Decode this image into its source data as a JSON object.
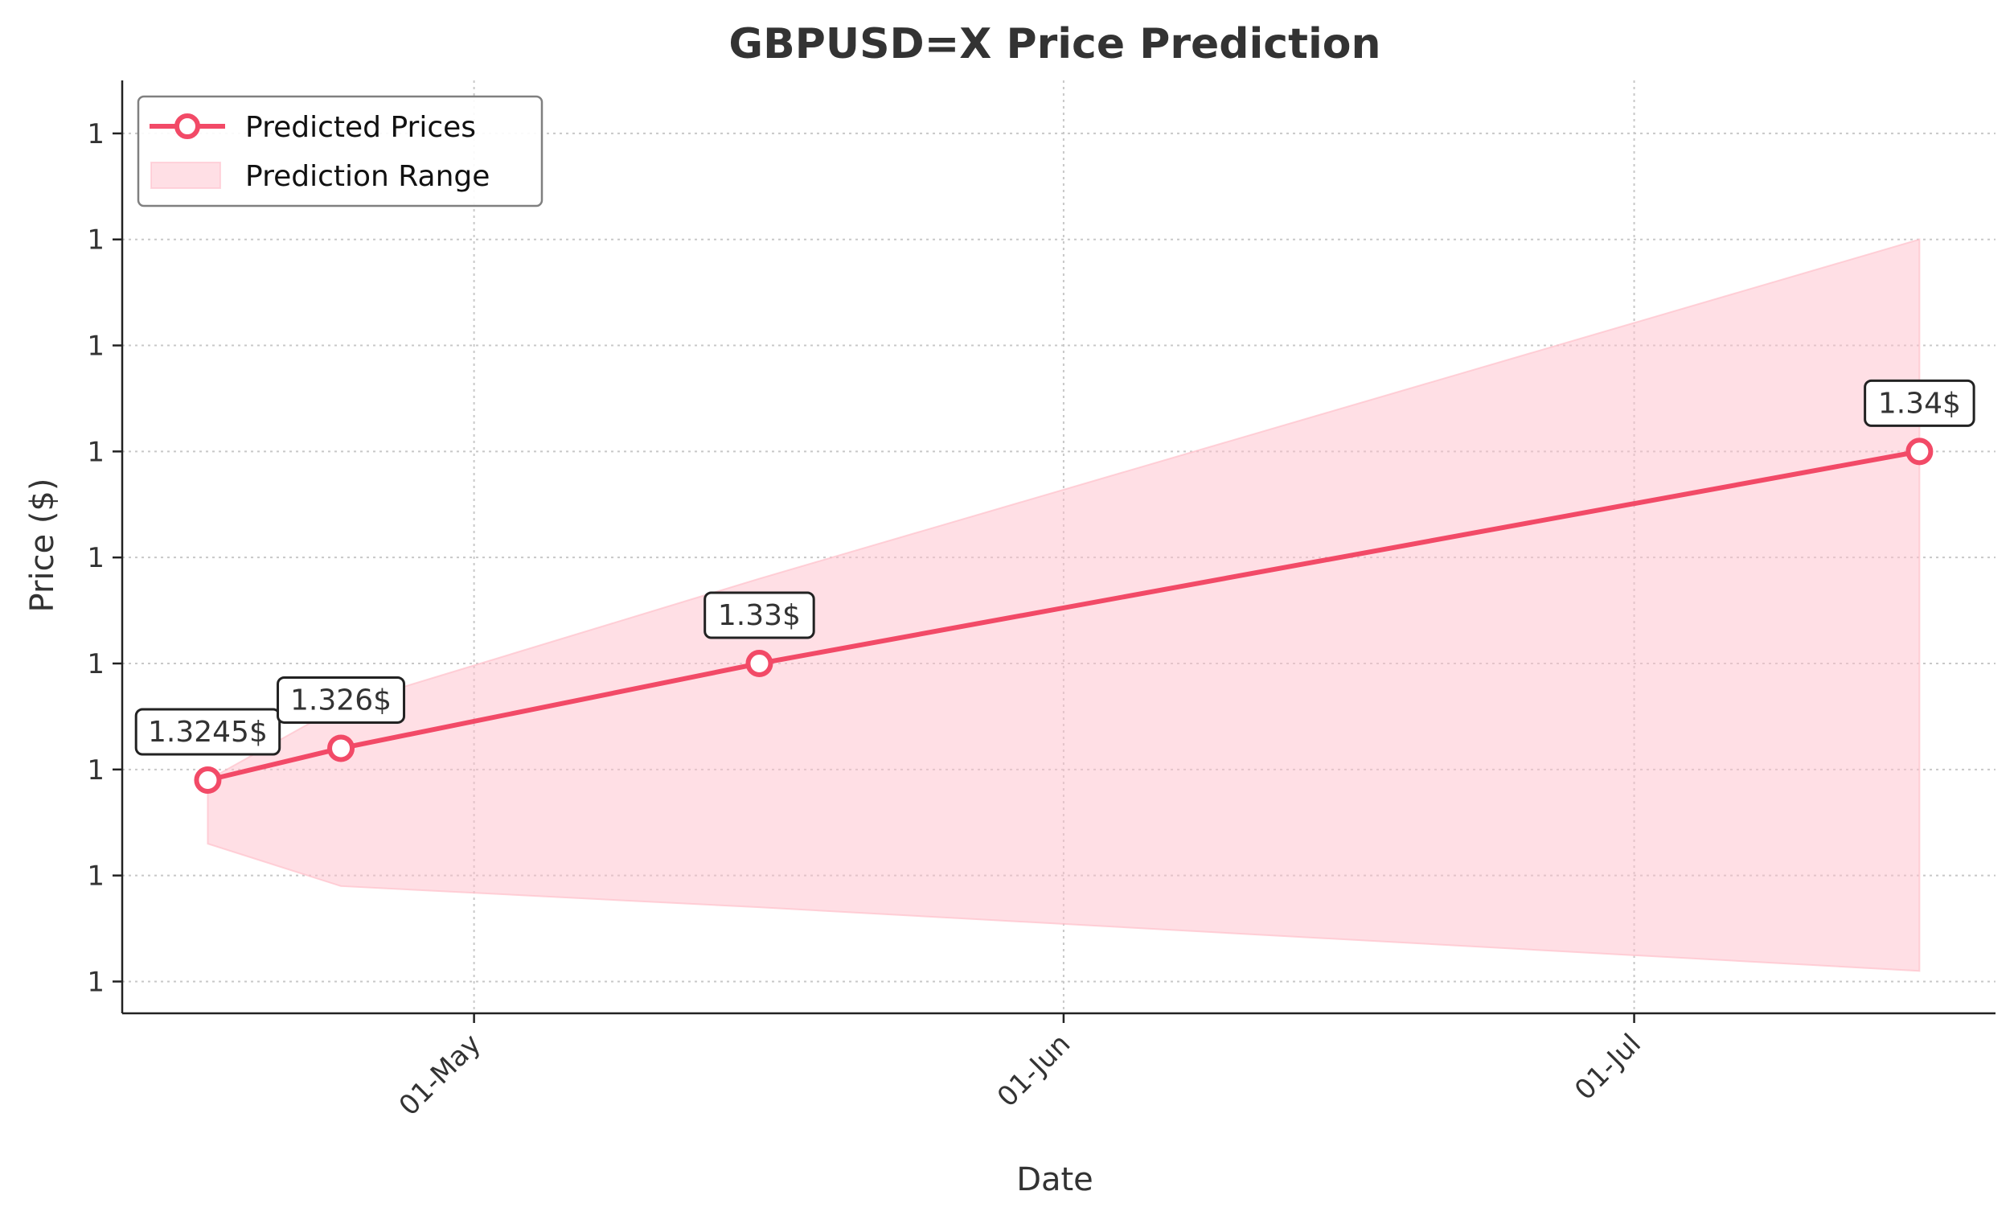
{
  "chart_data": {
    "type": "line",
    "title": "GBPUSD=X Price Prediction",
    "xlabel": "Date",
    "ylabel": "Price ($)",
    "x_tick_labels": [
      "01-May",
      "01-Jun",
      "01-Jul"
    ],
    "y_tick_labels": [
      "1",
      "1",
      "1",
      "1",
      "1",
      "1",
      "1",
      "1",
      "1"
    ],
    "grid": true,
    "legend_position": "top-left",
    "series": [
      {
        "name": "Predicted Prices",
        "type": "line",
        "color": "#f24a67",
        "x_days": [
          -14,
          -7,
          15,
          76
        ],
        "values": [
          1.3245,
          1.326,
          1.33,
          1.34
        ],
        "labels": [
          "1.3245$",
          "1.326$",
          "1.33$",
          "1.34$"
        ]
      },
      {
        "name": "Prediction Range",
        "type": "area",
        "color": "#ffc0cb",
        "x_days": [
          -14,
          -7,
          15,
          76
        ],
        "upper": [
          1.3245,
          1.328,
          1.334,
          1.35
        ],
        "lower": [
          1.3215,
          1.3195,
          1.3185,
          1.3155
        ]
      }
    ],
    "x_range_days": [
      -18.5,
      80
    ],
    "x_tick_days": [
      0,
      31,
      61
    ],
    "ylim": [
      1.3135,
      1.3575
    ],
    "y_ticks": [
      1.315,
      1.32,
      1.325,
      1.33,
      1.335,
      1.34,
      1.345,
      1.35,
      1.355
    ]
  }
}
